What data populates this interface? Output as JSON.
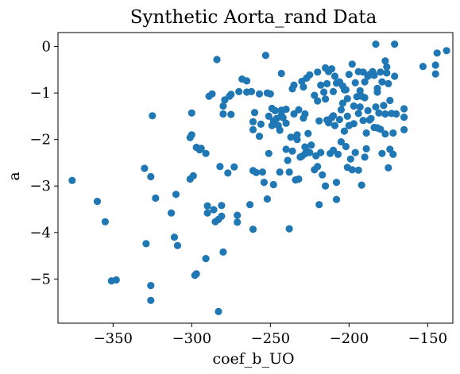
{
  "chart_data": {
    "type": "scatter",
    "title": "Synthetic Aorta_rand Data",
    "xlabel": "coef_b_UO",
    "ylabel": "a",
    "xlim": [
      -385,
      -134
    ],
    "ylim": [
      -5.95,
      0.3
    ],
    "x_ticks": [
      -350,
      -300,
      -250,
      -200,
      -150
    ],
    "x_tick_labels": [
      "−350",
      "−300",
      "−250",
      "−200",
      "−150"
    ],
    "y_ticks": [
      0,
      -1,
      -2,
      -3,
      -4,
      -5
    ],
    "y_tick_labels": [
      "0",
      "−1",
      "−2",
      "−3",
      "−4",
      "−5"
    ],
    "grid": false,
    "legend": "none",
    "marker_color": "#1f77b4",
    "series": [
      {
        "points": [
          [
            -376,
            -2.88
          ],
          [
            -360,
            -3.33
          ],
          [
            -355,
            -3.77
          ],
          [
            -351,
            -5.04
          ],
          [
            -348,
            -5.02
          ],
          [
            -330,
            -2.62
          ],
          [
            -329,
            -4.24
          ],
          [
            -326,
            -2.8
          ],
          [
            -326,
            -5.14
          ],
          [
            -326,
            -5.46
          ],
          [
            -325,
            -1.49
          ],
          [
            -323,
            -3.26
          ],
          [
            -313,
            -3.58
          ],
          [
            -311,
            -4.1
          ],
          [
            -310,
            -3.18
          ],
          [
            -309,
            -4.28
          ],
          [
            -301,
            -2.85
          ],
          [
            -301,
            -1.96
          ],
          [
            -300,
            -1.43
          ],
          [
            -300,
            -1.9
          ],
          [
            -299,
            -2.78
          ],
          [
            -298,
            -4.92
          ],
          [
            -297,
            -4.89
          ],
          [
            -297,
            -2.17
          ],
          [
            -295,
            -2.22
          ],
          [
            -294,
            -2.19
          ],
          [
            -291,
            -2.3
          ],
          [
            -291,
            -4.56
          ],
          [
            -290,
            -3.58
          ],
          [
            -290,
            -3.43
          ],
          [
            -289,
            -1.07
          ],
          [
            -287,
            -1.02
          ],
          [
            -286,
            -3.51
          ],
          [
            -285,
            -3.77
          ],
          [
            -284,
            -0.28
          ],
          [
            -283,
            -3.72
          ],
          [
            -283,
            -5.7
          ],
          [
            -282,
            -2.58
          ],
          [
            -281,
            -3.65
          ],
          [
            -281,
            -3.42
          ],
          [
            -280,
            -4.42
          ],
          [
            -280,
            -1.28
          ],
          [
            -280,
            -1.45
          ],
          [
            -279,
            -1.15
          ],
          [
            -277,
            -2.72
          ],
          [
            -276,
            -1.07
          ],
          [
            -275,
            -1.46
          ],
          [
            -275,
            -1.03
          ],
          [
            -273,
            -2.59
          ],
          [
            -271,
            -3.78
          ],
          [
            -271,
            -3.63
          ],
          [
            -270,
            -0.97
          ],
          [
            -268,
            -0.7
          ],
          [
            -265,
            -0.98
          ],
          [
            -265,
            -0.74
          ],
          [
            -263,
            -3.4
          ],
          [
            -262,
            -0.97
          ],
          [
            -261,
            -3.93
          ],
          [
            -261,
            -1.62
          ],
          [
            -261,
            -1.79
          ],
          [
            -261,
            -2.67
          ],
          [
            -260,
            -1.42
          ],
          [
            -259,
            -2.71
          ],
          [
            -257,
            -1.02
          ],
          [
            -257,
            -1.93
          ],
          [
            -256,
            -1.67
          ],
          [
            -255,
            -2.7
          ],
          [
            -254,
            -2.92
          ],
          [
            -253,
            -0.19
          ],
          [
            -252,
            -1.0
          ],
          [
            -252,
            -3.28
          ],
          [
            -251,
            -2.3
          ],
          [
            -251,
            -1.5
          ],
          [
            -250,
            -1.02
          ],
          [
            -249,
            -1.33
          ],
          [
            -249,
            -1.7
          ],
          [
            -248,
            -2.97
          ],
          [
            -248,
            -1.6
          ],
          [
            -247,
            -1.38
          ],
          [
            -246,
            -1.55
          ],
          [
            -245,
            -1.7
          ],
          [
            -244,
            -2.7
          ],
          [
            -244,
            -1.8
          ],
          [
            -243,
            -1.37
          ],
          [
            -243,
            -1.47
          ],
          [
            -243,
            -0.58
          ],
          [
            -242,
            -1.53
          ],
          [
            -240,
            -1.35
          ],
          [
            -240,
            -2.21
          ],
          [
            -240,
            -1.65
          ],
          [
            -239,
            -2.45
          ],
          [
            -238,
            -3.92
          ],
          [
            -238,
            -2.7
          ],
          [
            -237,
            -1.95
          ],
          [
            -236,
            -2.25
          ],
          [
            -236,
            -0.91
          ],
          [
            -235,
            -1.45
          ],
          [
            -235,
            -0.83
          ],
          [
            -234,
            -2.87
          ],
          [
            -233,
            -2.0
          ],
          [
            -233,
            -1.9
          ],
          [
            -232,
            -2.85
          ],
          [
            -232,
            -1.36
          ],
          [
            -231,
            -2.38
          ],
          [
            -230,
            -0.75
          ],
          [
            -230,
            -2.36
          ],
          [
            -229,
            -1.54
          ],
          [
            -229,
            -0.87
          ],
          [
            -228,
            -2.31
          ],
          [
            -228,
            -2.16
          ],
          [
            -228,
            -1.45
          ],
          [
            -227,
            -0.68
          ],
          [
            -227,
            -2.25
          ],
          [
            -226,
            -1.87
          ],
          [
            -225,
            -2.28
          ],
          [
            -225,
            -0.61
          ],
          [
            -224,
            -2.12
          ],
          [
            -222,
            -2.65
          ],
          [
            -222,
            -1.05
          ],
          [
            -221,
            -2.35
          ],
          [
            -220,
            -1.17
          ],
          [
            -220,
            -2.58
          ],
          [
            -220,
            -0.55
          ],
          [
            -219,
            -3.4
          ],
          [
            -219,
            -1.6
          ],
          [
            -218,
            -2.28
          ],
          [
            -218,
            -0.83
          ],
          [
            -217,
            -2.76
          ],
          [
            -216,
            -0.98
          ],
          [
            -215,
            -3.0
          ],
          [
            -215,
            -1.13
          ],
          [
            -215,
            -0.46
          ],
          [
            -214,
            -1.58
          ],
          [
            -214,
            -0.8
          ],
          [
            -213,
            -1.64
          ],
          [
            -213,
            -0.54
          ],
          [
            -212,
            -2.3
          ],
          [
            -211,
            -1.53
          ],
          [
            -211,
            -0.48
          ],
          [
            -210,
            -0.97
          ],
          [
            -210,
            -1.49
          ],
          [
            -210,
            -2.23
          ],
          [
            -209,
            -0.64
          ],
          [
            -209,
            -1.7
          ],
          [
            -208,
            -3.29
          ],
          [
            -208,
            -2.92
          ],
          [
            -208,
            -0.79
          ],
          [
            -207,
            -2.32
          ],
          [
            -206,
            -1.57
          ],
          [
            -206,
            -0.76
          ],
          [
            -205,
            -2.05
          ],
          [
            -205,
            -1.36
          ],
          [
            -204,
            -0.85
          ],
          [
            -204,
            -1.22
          ],
          [
            -203,
            -1.82
          ],
          [
            -203,
            -0.93
          ],
          [
            -202,
            -2.15
          ],
          [
            -202,
            -0.93
          ],
          [
            -201,
            -1.5
          ],
          [
            -201,
            -1.12
          ],
          [
            -201,
            -2.6
          ],
          [
            -200,
            -1.7
          ],
          [
            -200,
            -0.6
          ],
          [
            -199,
            -2.42
          ],
          [
            -198,
            -0.38
          ],
          [
            -198,
            -2.65
          ],
          [
            -197,
            -1.66
          ],
          [
            -197,
            -1.28
          ],
          [
            -196,
            -0.78
          ],
          [
            -196,
            -2.28
          ],
          [
            -195,
            -1.08
          ],
          [
            -194,
            -1.44
          ],
          [
            -194,
            -2.66
          ],
          [
            -194,
            -0.54
          ],
          [
            -193,
            -1.3
          ],
          [
            -193,
            -0.95
          ],
          [
            -192,
            -2.98
          ],
          [
            -192,
            -1.07
          ],
          [
            -191,
            -0.55
          ],
          [
            -191,
            -1.59
          ],
          [
            -190,
            -2.38
          ],
          [
            -190,
            -1.1
          ],
          [
            -190,
            -0.76
          ],
          [
            -189,
            -2.2
          ],
          [
            -189,
            -1.86
          ],
          [
            -188,
            -1.38
          ],
          [
            -188,
            -0.64
          ],
          [
            -187,
            -1.58
          ],
          [
            -187,
            -0.6
          ],
          [
            -186,
            -1.55
          ],
          [
            -185,
            -0.54
          ],
          [
            -184,
            -1.74
          ],
          [
            -184,
            -0.62
          ],
          [
            -183,
            0.05
          ],
          [
            -183,
            -1.3
          ],
          [
            -182,
            -0.9
          ],
          [
            -182,
            -0.98
          ],
          [
            -182,
            -1.75
          ],
          [
            -181,
            -1.43
          ],
          [
            -180,
            -0.55
          ],
          [
            -180,
            -1.78
          ],
          [
            -179,
            -0.76
          ],
          [
            -179,
            -2.3
          ],
          [
            -178,
            -1.27
          ],
          [
            -177,
            -0.31
          ],
          [
            -177,
            -1.88
          ],
          [
            -177,
            -1.45
          ],
          [
            -176,
            -0.57
          ],
          [
            -176,
            -0.44
          ],
          [
            -175,
            -0.8
          ],
          [
            -175,
            -2.61
          ],
          [
            -174,
            -2.21
          ],
          [
            -174,
            -1.16
          ],
          [
            -173,
            -1.44
          ],
          [
            -172,
            -1.86
          ],
          [
            -172,
            -2.32
          ],
          [
            -171,
            0.05
          ],
          [
            -171,
            -0.64
          ],
          [
            -170,
            -1.45
          ],
          [
            -165,
            -1.52
          ],
          [
            -165,
            -1.34
          ],
          [
            -165,
            -1.79
          ],
          [
            -153,
            -0.43
          ],
          [
            -145,
            -0.4
          ],
          [
            -145,
            -0.59
          ],
          [
            -144,
            -0.14
          ],
          [
            -138,
            -0.09
          ]
        ]
      }
    ]
  }
}
